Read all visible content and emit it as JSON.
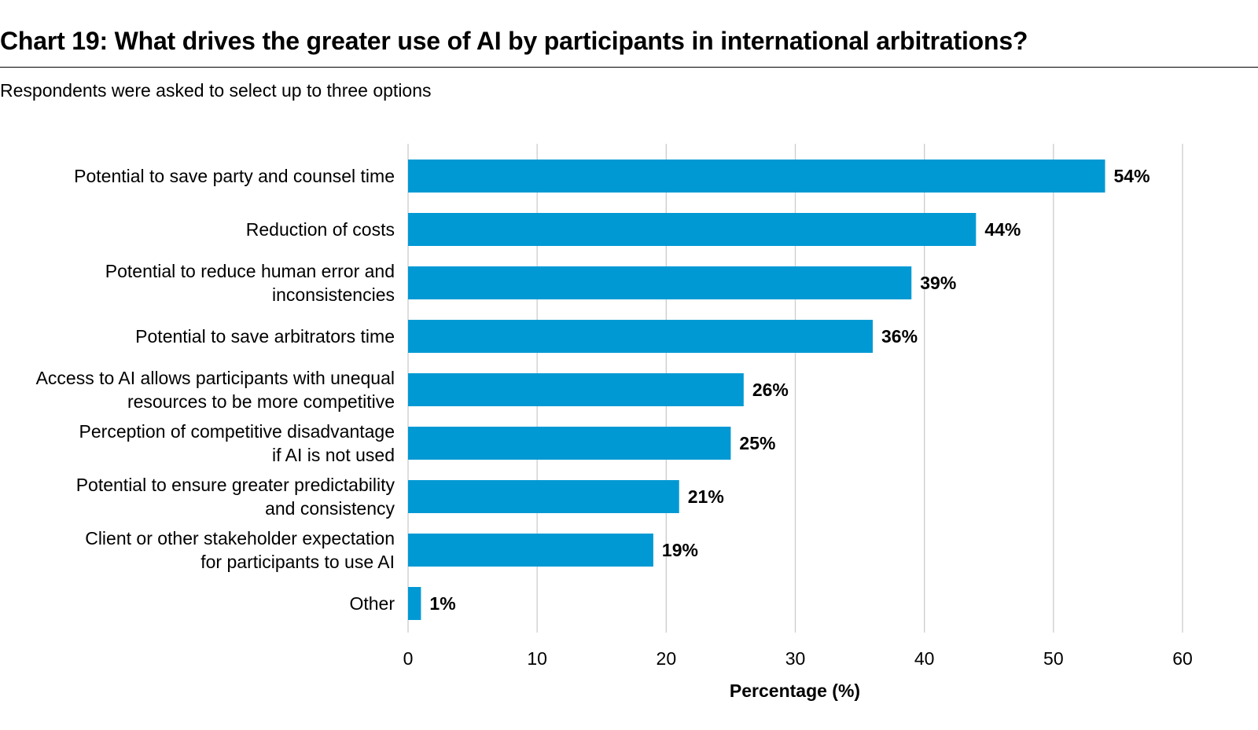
{
  "chart_data": {
    "type": "bar",
    "orientation": "horizontal",
    "title": "Chart 19: What drives the greater use of AI by participants in international arbitrations?",
    "subtitle": "Respondents were asked to select up to three options",
    "categories": [
      [
        "Potential to save party and counsel time"
      ],
      [
        "Reduction of costs"
      ],
      [
        "Potential to reduce human error and",
        "inconsistencies"
      ],
      [
        "Potential to save arbitrators time"
      ],
      [
        "Access to AI allows participants with unequal",
        "resources to be more competitive"
      ],
      [
        "Perception of competitive disadvantage",
        "if AI is not used"
      ],
      [
        "Potential to ensure greater predictability",
        "and consistency"
      ],
      [
        "Client or other stakeholder expectation",
        "for participants to use AI"
      ],
      [
        "Other"
      ]
    ],
    "values": [
      54,
      44,
      39,
      36,
      26,
      25,
      21,
      19,
      1
    ],
    "value_labels": [
      "54%",
      "44%",
      "39%",
      "36%",
      "26%",
      "25%",
      "21%",
      "19%",
      "1%"
    ],
    "xlabel": "Percentage (%)",
    "ylabel": "",
    "xlim": [
      0,
      60
    ],
    "xticks": [
      0,
      10,
      20,
      30,
      40,
      50,
      60
    ],
    "xtick_labels": [
      "0",
      "10",
      "20",
      "30",
      "40",
      "50",
      "60"
    ],
    "grid": true,
    "bar_color": "#0099d4",
    "grid_color": "#cccccc"
  }
}
